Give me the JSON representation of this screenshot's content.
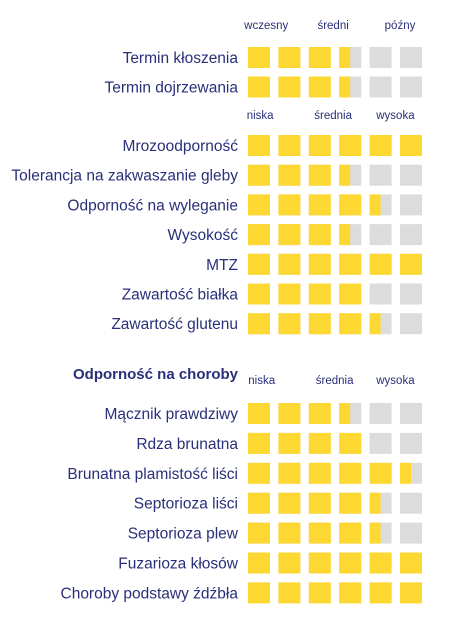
{
  "colors": {
    "filled": "#FDD832",
    "empty": "#DCDCDC",
    "text": "#2a2f7a"
  },
  "chart_data": [
    {
      "type": "rating-squares",
      "heading": "",
      "max": 6,
      "scale_labels": [
        "wczesny",
        "średni",
        "późny"
      ],
      "rows": [
        {
          "label": "Termin kłoszenia",
          "value": 3.5
        },
        {
          "label": "Termin dojrzewania",
          "value": 3.5
        }
      ]
    },
    {
      "type": "rating-squares",
      "heading": "",
      "max": 6,
      "scale_labels": [
        "niska",
        "średnia",
        "wysoka"
      ],
      "rows": [
        {
          "label": "Mrozoodporność",
          "value": 6
        },
        {
          "label": "Tolerancja na zakwaszanie gleby",
          "value": 3.5
        },
        {
          "label": "Odporność na wyleganie",
          "value": 4.5
        },
        {
          "label": "Wysokość",
          "value": 3.5
        },
        {
          "label": "MTZ",
          "value": 6
        },
        {
          "label": "Zawartość białka",
          "value": 4
        },
        {
          "label": "Zawartość glutenu",
          "value": 4.5
        }
      ]
    },
    {
      "type": "rating-squares",
      "heading": "Odporność na choroby",
      "max": 6,
      "scale_labels": [
        "niska",
        "średnia",
        "wysoka"
      ],
      "rows": [
        {
          "label": "Mącznik prawdziwy",
          "value": 3.5
        },
        {
          "label": "Rdza brunatna",
          "value": 4
        },
        {
          "label": "Brunatna plamistość liści",
          "value": 5.5
        },
        {
          "label": "Septorioza liści",
          "value": 4.5
        },
        {
          "label": "Septorioza plew",
          "value": 4.5
        },
        {
          "label": "Fuzarioza kłosów",
          "value": 6
        },
        {
          "label": "Choroby podstawy źdźbła",
          "value": 6
        }
      ]
    }
  ]
}
